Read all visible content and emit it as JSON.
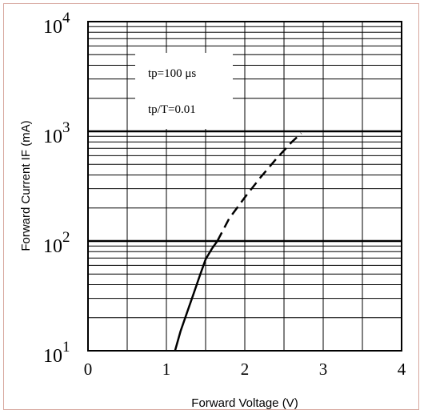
{
  "chart_data": {
    "type": "line",
    "title": "",
    "xlabel": "Forward Voltage (V)",
    "ylabel": "Forward Current IF (mA)",
    "x_ticks": [
      "0",
      "1",
      "2",
      "3",
      "4"
    ],
    "y_ticks": [
      {
        "base": "10",
        "exp": "1"
      },
      {
        "base": "10",
        "exp": "2"
      },
      {
        "base": "10",
        "exp": "3"
      },
      {
        "base": "10",
        "exp": "4"
      }
    ],
    "xlim": [
      0,
      4
    ],
    "ylim": [
      10,
      10000
    ],
    "yscale": "log",
    "grid": true,
    "annotations": [
      "tp=100 μs",
      "tp/T=0.01"
    ],
    "series": [
      {
        "style": "solid",
        "color": "#000000",
        "points": [
          [
            1.11,
            10
          ],
          [
            1.18,
            15
          ],
          [
            1.26,
            22
          ],
          [
            1.34,
            32
          ],
          [
            1.42,
            47
          ],
          [
            1.5,
            68
          ],
          [
            1.58,
            85
          ],
          [
            1.65,
            100
          ]
        ]
      },
      {
        "style": "dashed",
        "color": "#000000",
        "points": [
          [
            1.65,
            100
          ],
          [
            1.8,
            160
          ],
          [
            2.0,
            250
          ],
          [
            2.2,
            380
          ],
          [
            2.4,
            560
          ],
          [
            2.6,
            800
          ],
          [
            2.72,
            960
          ]
        ]
      }
    ]
  }
}
